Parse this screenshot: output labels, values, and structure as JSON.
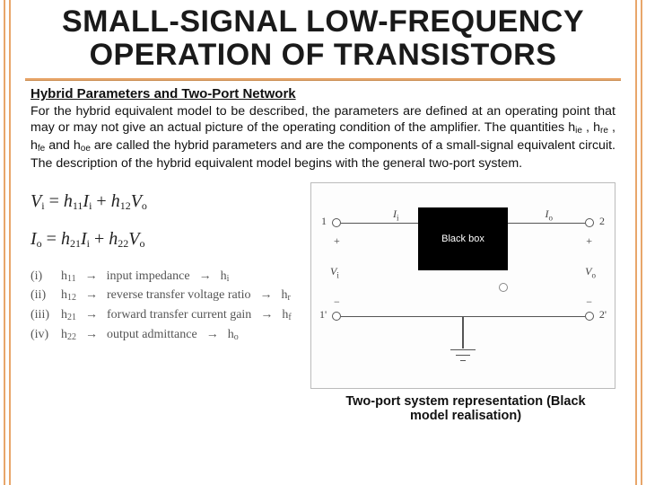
{
  "title": "SMALL-SIGNAL LOW-FREQUENCY OPERATION OF TRANSISTORS",
  "subheading": "Hybrid Parameters and Two-Port Network",
  "paragraph_html": "For the hybrid equivalent model to be described, the parameters are defined at an operating point that may or may not give an actual picture of the operating condition of the amplifier. The quantities h<sub>ie</sub> , h<sub>re</sub> , h<sub>fe</sub> and h<sub>oe</sub> are called the hybrid parameters and are the components of a small-signal equivalent circuit. The description of the hybrid equivalent model begins with the general two-port system.",
  "equations": {
    "eq1_html": "V<sub>i</sub> <span class='norm'>=</span> h<sub>11</sub>I<sub>i</sub> <span class='norm'>+</span> h<sub>12</sub>V<sub>o</sub>",
    "eq2_html": "I<sub>o</sub> <span class='norm'>=</span> h<sub>21</sub>I<sub>i</sub> <span class='norm'>+</span> h<sub>22</sub>V<sub>o</sub>"
  },
  "definitions": [
    {
      "idx": "(i)",
      "lhs_html": "h<sub>11</sub>",
      "name": "input impedance",
      "rhs_html": "h<sub>i</sub>"
    },
    {
      "idx": "(ii)",
      "lhs_html": "h<sub>12</sub>",
      "name": "reverse transfer voltage ratio",
      "rhs_html": "h<sub>r</sub>"
    },
    {
      "idx": "(iii)",
      "lhs_html": "h<sub>21</sub>",
      "name": "forward transfer current gain",
      "rhs_html": "h<sub>f</sub>"
    },
    {
      "idx": "(iv)",
      "lhs_html": "h<sub>22</sub>",
      "name": "output admittance",
      "rhs_html": "h<sub>o</sub>"
    }
  ],
  "figure": {
    "labels": {
      "Ii": "I<sub>i</sub>",
      "Io": "I<sub>o</sub>",
      "Vi": "V<sub>i</sub>",
      "Vo": "V<sub>o</sub>",
      "one": "1",
      "onep": "1'",
      "two": "2",
      "twop": "2'",
      "box": "Black box"
    },
    "colors": {
      "border": "#bbbbbb",
      "wire": "#555555",
      "box_bg": "#000000",
      "box_fg": "#ffffff"
    }
  },
  "caption": "Two-port system representation (Black model realisation)",
  "accent_color": "#e8a66a"
}
